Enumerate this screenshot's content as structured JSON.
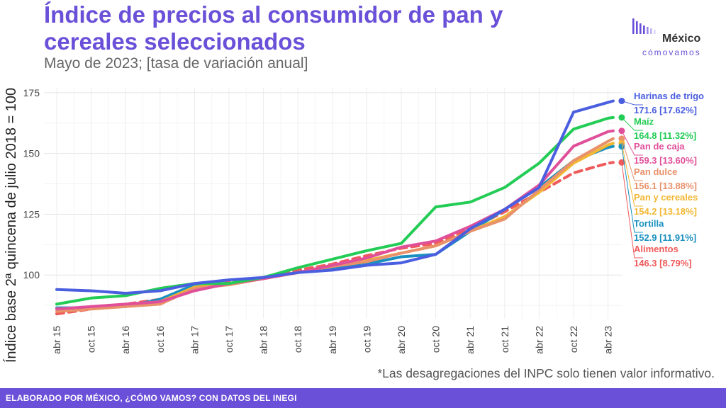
{
  "header": {
    "title": "Índice de precios al consumidor de pan y cereales seleccionados",
    "subtitle": "Mayo de 2023; [tasa de variación anual]"
  },
  "logo": {
    "name": "México",
    "tagline": "cómovamos"
  },
  "footnote": "*Las desagregaciones del INPC solo tienen valor informativo.",
  "footer": {
    "text": "ELABORADO POR MÉXICO, ¿CÓMO VAMOS? CON DATOS DEL INEGI"
  },
  "colors": {
    "accent": "#6a50d8",
    "footer_bg": "#6a50d8"
  },
  "chart_data": {
    "type": "line",
    "ylabel": "Índice base 2ª quincena de julio 2018 = 100",
    "xlabel": "",
    "ylim": [
      82,
      177
    ],
    "yticks": [
      100,
      125,
      150,
      175
    ],
    "xticks": [
      "abr 15",
      "oct 15",
      "abr 16",
      "oct 16",
      "abr 17",
      "oct 17",
      "abr 18",
      "oct 18",
      "abr 19",
      "oct 19",
      "abr 20",
      "oct 20",
      "abr 21",
      "oct 21",
      "abr 22",
      "oct 22",
      "abr 23"
    ],
    "grid": true,
    "legend": "end-of-line labels, right",
    "x": [
      "abr 15",
      "oct 15",
      "abr 16",
      "oct 16",
      "abr 17",
      "oct 17",
      "abr 18",
      "oct 18",
      "abr 19",
      "oct 19",
      "abr 20",
      "oct 20",
      "abr 21",
      "oct 21",
      "abr 22",
      "oct 22",
      "abr 23",
      "may 23"
    ],
    "series": [
      {
        "name": "Harinas de trigo",
        "end_label": "171.6 [17.62%]",
        "color": "#4a5ee0",
        "dashed": false,
        "values": [
          94,
          93.5,
          92.5,
          93.5,
          96.5,
          98,
          99,
          101,
          102,
          104,
          105,
          108.5,
          119,
          127,
          136,
          167,
          171,
          171.6
        ]
      },
      {
        "name": "Maíz",
        "end_label": "164.8 [11.32%]",
        "color": "#22cc55",
        "dashed": false,
        "values": [
          88,
          90.5,
          91.5,
          94.5,
          96.5,
          96.5,
          99,
          103,
          106.5,
          110,
          113,
          128,
          130,
          136,
          146,
          160,
          164.5,
          164.8
        ]
      },
      {
        "name": "Pan de caja",
        "end_label": "159.3 [13.60%]",
        "color": "#e0509a",
        "dashed": false,
        "values": [
          86,
          87,
          88,
          89,
          93.5,
          96.5,
          98.5,
          101,
          104,
          107,
          111.5,
          114,
          120,
          127,
          137,
          153,
          159,
          159.3
        ]
      },
      {
        "name": "Pan dulce",
        "end_label": "156.1 [13.88%]",
        "color": "#e8916a",
        "dashed": false,
        "values": [
          85,
          86,
          87,
          88,
          94.5,
          96,
          98.5,
          101,
          103.5,
          105.5,
          109,
          112,
          118,
          123,
          135,
          147,
          155,
          156.1
        ]
      },
      {
        "name": "Pan y cereales",
        "end_label": "154.2 [13.18%]",
        "color": "#f2b733",
        "dashed": false,
        "values": [
          86,
          86.5,
          87.5,
          89,
          95,
          96.5,
          99,
          101,
          104,
          106,
          109,
          112,
          118,
          124,
          134,
          146,
          153.5,
          154.2
        ]
      },
      {
        "name": "Tortilla",
        "end_label": "152.9 [11.91%]",
        "color": "#1a90c0",
        "dashed": false,
        "values": [
          86.5,
          86.5,
          87,
          90,
          96,
          96.5,
          99,
          101,
          103,
          104.5,
          107.5,
          108.5,
          118,
          127,
          136,
          147,
          152.5,
          152.9
        ]
      },
      {
        "name": "Alimentos",
        "end_label": "146.3 [8.79%]",
        "color": "#f05a5a",
        "dashed": true,
        "values": [
          84,
          86,
          88,
          90,
          94,
          97,
          99,
          102,
          104.5,
          108,
          111,
          113,
          119,
          126,
          134,
          142,
          146,
          146.3
        ]
      }
    ]
  }
}
